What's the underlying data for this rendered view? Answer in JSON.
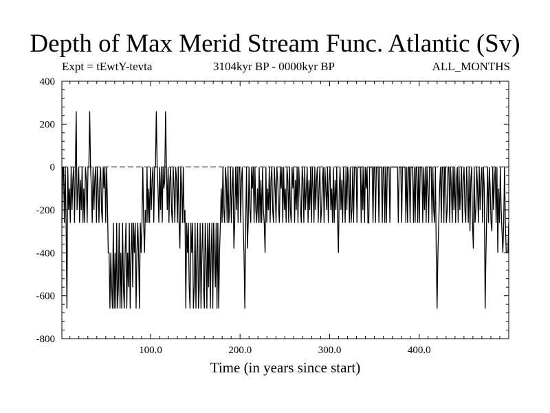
{
  "chart_data": {
    "type": "line",
    "title": "Depth of Max Merid Stream Func. Atlantic (Sv)",
    "subtitle_left": "Expt = tEwtY-tevta",
    "subtitle_center": "3104kyr BP - 0000kyr BP",
    "subtitle_right": "ALL_MONTHS",
    "xlabel": "Time (in years since start)",
    "ylabel": "",
    "xlim": [
      1,
      500
    ],
    "ylim": [
      -800,
      400
    ],
    "xticks_major": [
      100,
      200,
      300,
      400
    ],
    "xtick_labels": [
      "100.0",
      "200.0",
      "300.0",
      "400.0"
    ],
    "yticks": [
      -800,
      -600,
      -400,
      -200,
      0,
      200,
      400
    ],
    "ytick_labels": [
      "-800",
      "-600",
      "-400",
      "-200",
      "0",
      "200",
      "400"
    ],
    "zero_line": "dashed",
    "grid": false,
    "series": [
      {
        "values": [
          -260,
          0,
          0,
          -260,
          0,
          -260,
          -660,
          0,
          -200,
          -100,
          -260,
          0,
          -200,
          -60,
          0,
          -260,
          0,
          260,
          -200,
          -100,
          0,
          -260,
          -60,
          -200,
          0,
          -260,
          -100,
          -260,
          0,
          -60,
          -260,
          0,
          0,
          260,
          0,
          -100,
          -260,
          0,
          -200,
          -60,
          0,
          -260,
          0,
          -100,
          -260,
          -60,
          0,
          -200,
          -260,
          0,
          -100,
          0,
          -260,
          0,
          -160,
          -400,
          -400,
          -660,
          -400,
          -560,
          -660,
          -260,
          -660,
          -400,
          -660,
          -260,
          -660,
          -560,
          -260,
          -660,
          -400,
          -660,
          -260,
          -560,
          -660,
          -400,
          -260,
          -660,
          -400,
          -560,
          -260,
          -660,
          -400,
          -260,
          -560,
          -260,
          -400,
          -260,
          -660,
          -400,
          -260,
          -400,
          -660,
          -260,
          -400,
          -260,
          0,
          -260,
          -400,
          -200,
          -260,
          0,
          -260,
          -100,
          -260,
          0,
          -200,
          -60,
          0,
          -260,
          0,
          0,
          260,
          0,
          -100,
          -260,
          0,
          -200,
          0,
          -260,
          0,
          -100,
          -60,
          260,
          0,
          -200,
          0,
          -260,
          -60,
          0,
          -200,
          -260,
          0,
          -100,
          -260,
          0,
          -60,
          -260,
          0,
          -260,
          -380,
          0,
          -100,
          -260,
          0,
          -260,
          -200,
          -660,
          -260,
          -400,
          -260,
          -560,
          -660,
          -260,
          -400,
          -260,
          -660,
          -560,
          -260,
          -660,
          -400,
          -260,
          -660,
          -560,
          -260,
          -660,
          -400,
          -260,
          -560,
          -660,
          -260,
          -400,
          -660,
          -260,
          -560,
          -260,
          -660,
          -400,
          -260,
          -660,
          -260,
          -400,
          -560,
          -260,
          -660,
          -260,
          -660,
          -400,
          -260,
          -100,
          -260,
          0,
          -200,
          -260,
          0,
          -60,
          -260,
          0,
          -260,
          -200,
          0,
          -260,
          -100,
          0,
          -380,
          -260,
          0,
          -200,
          0,
          -260,
          0,
          0,
          -260,
          -60,
          0,
          -260,
          -400,
          -660,
          -260,
          0,
          -380,
          -260,
          0,
          -200,
          -260,
          0,
          -100,
          0,
          -260,
          0,
          -200,
          -260,
          -100,
          -260,
          0,
          -260,
          -60,
          -260,
          0,
          -200,
          -260,
          -400,
          0,
          -260,
          -100,
          -200,
          0,
          -260,
          -60,
          0,
          -200,
          -260,
          0,
          -100,
          -260,
          0,
          -60,
          -200,
          -260,
          0,
          -100,
          0,
          -260,
          0,
          -200,
          -100,
          -260,
          0,
          -60,
          -260,
          0,
          -200,
          -260,
          0,
          -100,
          0,
          -260,
          -60,
          -200,
          0,
          -260,
          0,
          -100,
          -200,
          -260,
          0,
          -60,
          -260,
          0,
          -200,
          -100,
          0,
          -260,
          -60,
          -200,
          0,
          -260,
          0,
          -100,
          -260,
          0,
          -200,
          -60,
          0,
          -260,
          -100,
          0,
          -260,
          -200,
          -60,
          0,
          -260,
          0,
          -100,
          -200,
          0,
          -260,
          -60,
          0,
          -200,
          -100,
          -260,
          0,
          -260,
          -60,
          -200,
          0,
          -260,
          -400,
          -100,
          0,
          -200,
          -60,
          -260,
          0,
          -100,
          -260,
          0,
          -200,
          0,
          -60,
          -260,
          0,
          -260,
          -200,
          0,
          -260,
          0,
          0,
          0,
          -260,
          0,
          0,
          0,
          0,
          -260,
          0,
          -200,
          0,
          -260,
          0,
          -100,
          0,
          -260,
          -260,
          0,
          0,
          0,
          0,
          -260,
          0,
          0,
          -260,
          0,
          0,
          0,
          -260,
          0,
          0,
          0,
          -260,
          0,
          0,
          -260,
          0,
          -260,
          0,
          0,
          0,
          -260,
          0,
          0,
          0,
          0,
          0,
          0,
          0,
          0,
          0,
          -260,
          0,
          0,
          0,
          -260,
          0,
          0,
          0,
          0,
          -260,
          0,
          -260,
          0,
          0,
          -260,
          0,
          0,
          0,
          -260,
          0,
          -260,
          0,
          0,
          -260,
          0,
          -260,
          0,
          0,
          0,
          -260,
          0,
          -200,
          0,
          -260,
          0,
          -100,
          -260,
          0,
          0,
          0,
          -260,
          0,
          -200,
          -260,
          0,
          -400,
          -660,
          -400,
          -260,
          -100,
          0,
          -260,
          0,
          0,
          -260,
          0,
          0,
          -260,
          -200,
          0,
          0,
          -260,
          0,
          -100,
          -260,
          0,
          -200,
          0,
          -260,
          -60,
          0,
          -260,
          0,
          -200,
          -100,
          0,
          -260,
          -60,
          0,
          -200,
          -260,
          0,
          -100,
          -260,
          0,
          -300,
          -60,
          0,
          -260,
          -380,
          0,
          -260,
          -200,
          0,
          -100,
          -260,
          0,
          -200,
          -60,
          0,
          -260,
          0,
          -100,
          -660,
          -400,
          -200,
          0,
          -260,
          0,
          -100,
          -260,
          -300,
          0,
          -200,
          -60,
          0,
          -260,
          0,
          -400,
          -100,
          -260,
          0,
          -200,
          -300,
          -400,
          -260,
          0,
          -260,
          -400,
          -400,
          -400,
          -260
        ]
      }
    ]
  }
}
